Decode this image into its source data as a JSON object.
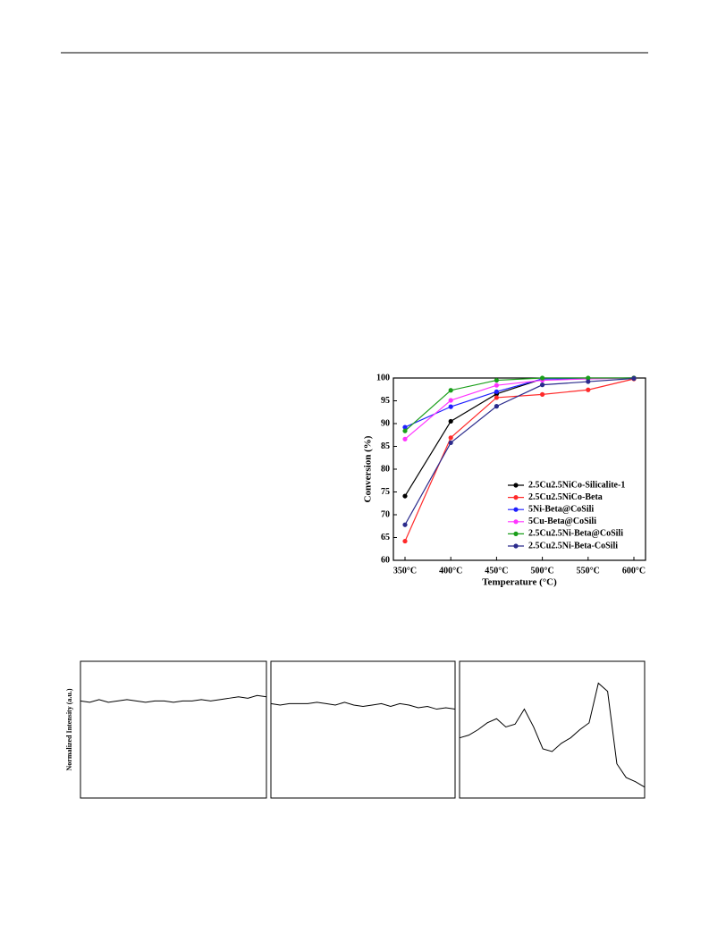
{
  "chart_data": [
    {
      "type": "line",
      "xlabel": "Temperature (°C)",
      "ylabel": "Conversion (%)",
      "categories": [
        "350°C",
        "400°C",
        "450°C",
        "500°C",
        "550°C",
        "600°C"
      ],
      "ylim": [
        60,
        100
      ],
      "yticks": [
        60,
        65,
        70,
        75,
        80,
        85,
        90,
        95,
        100
      ],
      "legend": "lower right",
      "series": [
        {
          "name": "2.5Cu2.5NiCo-Silicalite-1",
          "color": "#000000",
          "values": [
            74.1,
            90.5,
            96.5,
            99.8,
            99.9,
            100
          ]
        },
        {
          "name": "2.5Cu2.5NiCo-Beta",
          "color": "#ff2a2a",
          "values": [
            64.2,
            86.9,
            95.7,
            96.4,
            97.4,
            99.8
          ]
        },
        {
          "name": "5Ni-Beta@CoSili",
          "color": "#1f1fff",
          "values": [
            89.2,
            93.7,
            97.0,
            99.8,
            99.9,
            100
          ]
        },
        {
          "name": "5Cu-Beta@CoSili",
          "color": "#ff33ff",
          "values": [
            86.6,
            95.1,
            98.4,
            99.5,
            99.8,
            100
          ]
        },
        {
          "name": "2.5Cu2.5Ni-Beta@CoSili",
          "color": "#1a9e1a",
          "values": [
            88.4,
            97.3,
            99.5,
            100,
            100,
            100
          ]
        },
        {
          "name": "2.5Cu2.5Ni-Beta-CoSili",
          "color": "#2b2b8c",
          "values": [
            67.8,
            85.8,
            93.8,
            98.5,
            99.2,
            99.9
          ]
        }
      ]
    },
    {
      "type": "spectrum",
      "ylabel": "Normalized Intensity (a.u.)",
      "xlim": [
        0,
        1
      ],
      "ylim": [
        0,
        100
      ],
      "x": [
        0,
        0.05,
        0.1,
        0.15,
        0.2,
        0.25,
        0.3,
        0.35,
        0.4,
        0.45,
        0.5,
        0.55,
        0.6,
        0.65,
        0.7,
        0.75,
        0.8,
        0.85,
        0.9,
        0.95,
        1
      ],
      "series": [
        {
          "color": "#000000",
          "values": [
            71,
            70,
            72,
            70,
            71,
            72,
            71,
            70,
            71,
            71,
            70,
            71,
            71,
            72,
            71,
            72,
            73,
            74,
            73,
            75,
            74
          ]
        }
      ]
    },
    {
      "type": "spectrum",
      "xlim": [
        0,
        1
      ],
      "ylim": [
        0,
        100
      ],
      "x": [
        0,
        0.05,
        0.1,
        0.15,
        0.2,
        0.25,
        0.3,
        0.35,
        0.4,
        0.45,
        0.5,
        0.55,
        0.6,
        0.65,
        0.7,
        0.75,
        0.8,
        0.85,
        0.9,
        0.95,
        1
      ],
      "series": [
        {
          "color": "#000000",
          "values": [
            69,
            68,
            69,
            69,
            69,
            70,
            69,
            68,
            70,
            68,
            67,
            68,
            69,
            67,
            69,
            68,
            66,
            67,
            65,
            66,
            65
          ]
        }
      ]
    },
    {
      "type": "spectrum",
      "xlim": [
        0,
        1
      ],
      "ylim": [
        0,
        100
      ],
      "x": [
        0,
        0.05,
        0.1,
        0.15,
        0.2,
        0.25,
        0.3,
        0.35,
        0.4,
        0.45,
        0.5,
        0.55,
        0.6,
        0.65,
        0.7,
        0.75,
        0.8,
        0.85,
        0.9,
        0.95,
        1
      ],
      "series": [
        {
          "color": "#000000",
          "values": [
            44,
            46,
            50,
            55,
            58,
            52,
            54,
            65,
            52,
            36,
            34,
            40,
            44,
            50,
            55,
            84,
            78,
            25,
            15,
            12,
            8
          ]
        }
      ]
    }
  ]
}
